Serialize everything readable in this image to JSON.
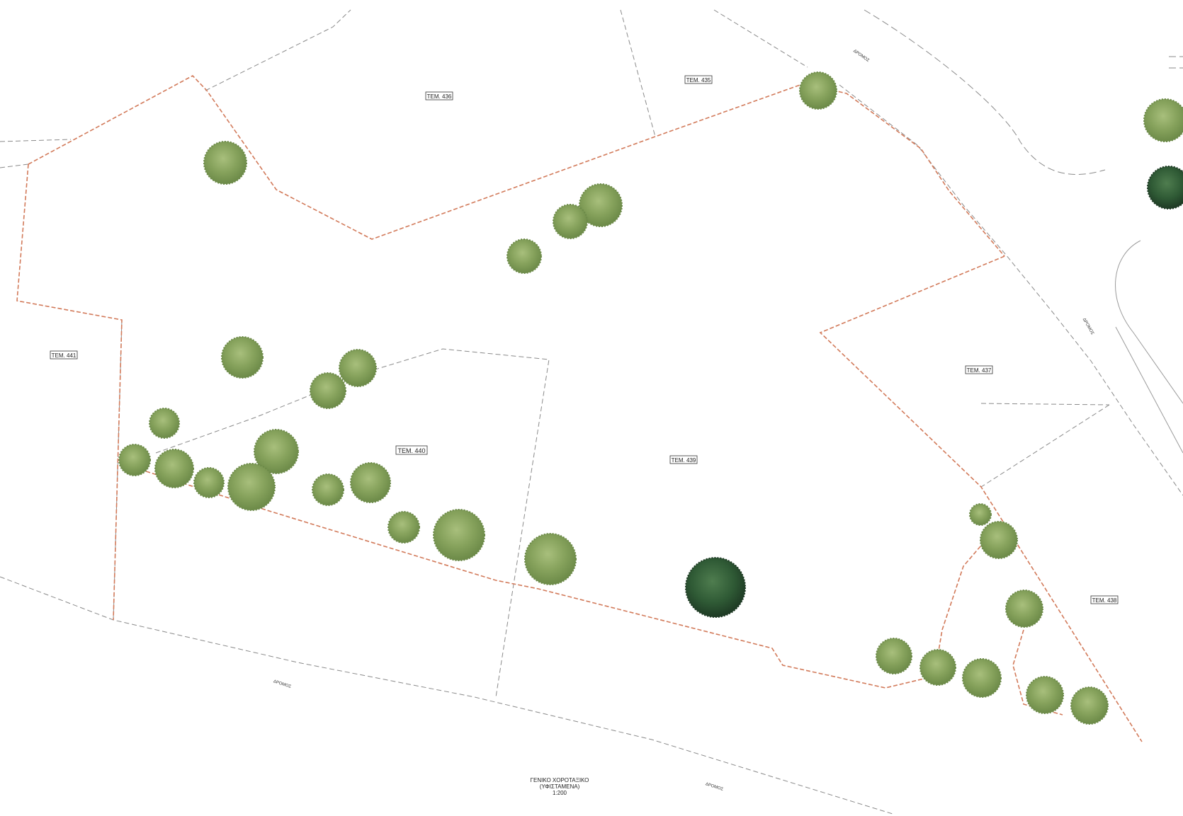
{
  "parcels": {
    "tem_435": "TEM. 435",
    "tem_436": "TEM. 436",
    "tem_437": "TEM. 437",
    "tem_438": "TEM. 438",
    "tem_439": "TEM. 439",
    "tem_440": "TEM. 440",
    "tem_441": "TEM. 441"
  },
  "roads": {
    "top": "ΔΡΟΜΟΣ",
    "right": "ΔΡΟΜΟΣ",
    "bottom_left": "ΔΡΟΜΟΣ",
    "bottom_right": "ΔΡΟΜΟΣ"
  },
  "caption": {
    "line1": "ΓΕΝΙΚΟ ΧΟΡΟΤΑΞΙΚΟ",
    "line2": "(ΥΦΙΣΤΑΜΕΝΑ)",
    "scale": "1:200"
  },
  "colors": {
    "tree_light": "#7f9a55",
    "tree_dark": "#2f5a35",
    "boundary": "#d27a5a",
    "parcel_line": "#8a8a8a"
  }
}
